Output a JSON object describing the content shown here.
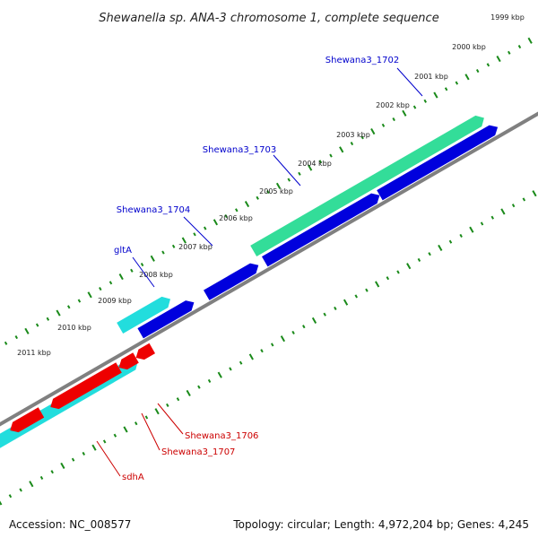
{
  "title": "Shewanella sp. ANA-3 chromosome 1, complete sequence",
  "footer": {
    "accession": "Accession: NC_008577",
    "summary": "Topology: circular; Length: 4,972,204 bp; Genes: 4,245"
  },
  "colors": {
    "forward_label": "#0000cc",
    "reverse_label": "#cc0000",
    "backbone": "#808080",
    "ticks": "#1a8a1a",
    "blue_gene": "#0000dd",
    "green_gene": "#33dd99",
    "cyan_gene": "#22dddd",
    "red_gene": "#ee0000"
  },
  "ticks": [
    "1999 kbp",
    "2000 kbp",
    "2001 kbp",
    "2002 kbp",
    "2003 kbp",
    "2004 kbp",
    "2005 kbp",
    "2006 kbp",
    "2007 kbp",
    "2008 kbp",
    "2009 kbp",
    "2010 kbp",
    "2011 kbp"
  ],
  "gene_labels": [
    {
      "text": "Shewana3_1702",
      "strand": "forward"
    },
    {
      "text": "Shewana3_1703",
      "strand": "forward"
    },
    {
      "text": "Shewana3_1704",
      "strand": "forward"
    },
    {
      "text": "gltA",
      "strand": "forward"
    },
    {
      "text": "Shewana3_1706",
      "strand": "reverse"
    },
    {
      "text": "Shewana3_1707",
      "strand": "reverse"
    },
    {
      "text": "sdhA",
      "strand": "reverse"
    }
  ]
}
